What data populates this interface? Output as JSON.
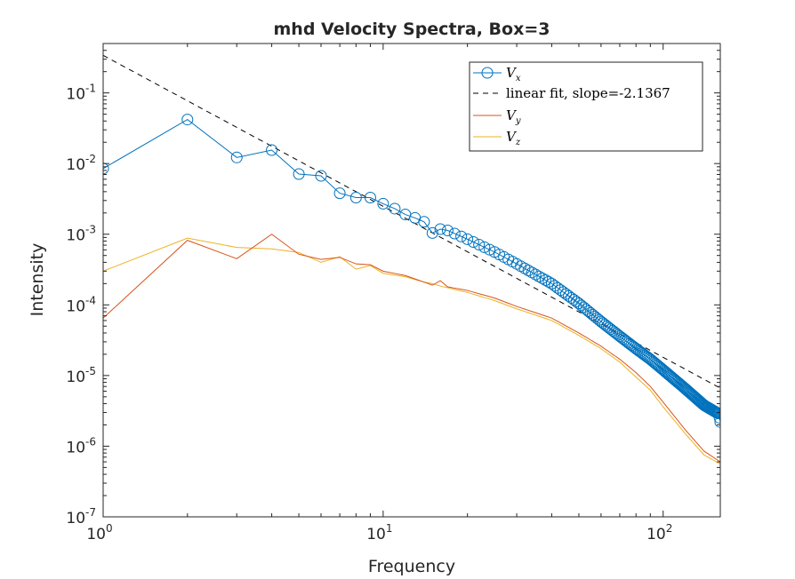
{
  "chart_data": {
    "type": "line",
    "title": "mhd Velocity Spectra, Box=3",
    "xlabel": "Frequency",
    "ylabel": "Intensity",
    "xscale": "log",
    "yscale": "log",
    "xlim": [
      1,
      160
    ],
    "ylim": [
      1e-07,
      0.5
    ],
    "grid": false,
    "legend_position": "top-right",
    "x_ticks": [
      {
        "base": "10",
        "exp": "0",
        "value": 1
      },
      {
        "base": "10",
        "exp": "1",
        "value": 10
      },
      {
        "base": "10",
        "exp": "2",
        "value": 100
      }
    ],
    "y_ticks": [
      {
        "base": "10",
        "exp": "-7",
        "value": 1e-07
      },
      {
        "base": "10",
        "exp": "-6",
        "value": 1e-06
      },
      {
        "base": "10",
        "exp": "-5",
        "value": 1e-05
      },
      {
        "base": "10",
        "exp": "-4",
        "value": 0.0001
      },
      {
        "base": "10",
        "exp": "-3",
        "value": 0.001
      },
      {
        "base": "10",
        "exp": "-2",
        "value": 0.01
      },
      {
        "base": "10",
        "exp": "-1",
        "value": 0.1
      }
    ],
    "series": [
      {
        "name": "V_x",
        "legend_main": "V",
        "legend_sub": "x",
        "color": "#0072BD",
        "marker": "circle",
        "anchors": [
          [
            1,
            0.0085
          ],
          [
            2,
            0.042
          ],
          [
            3,
            0.0122
          ],
          [
            4,
            0.0155
          ],
          [
            5,
            0.0071
          ],
          [
            6,
            0.0067
          ],
          [
            7,
            0.0038
          ],
          [
            8,
            0.0033
          ],
          [
            9,
            0.0033
          ],
          [
            10,
            0.0027
          ],
          [
            11,
            0.0023
          ],
          [
            12,
            0.0019
          ],
          [
            13,
            0.0017
          ],
          [
            14,
            0.0015
          ],
          [
            15,
            0.00104
          ],
          [
            16,
            0.00118
          ],
          [
            17,
            0.00113
          ],
          [
            20,
            0.00085
          ],
          [
            25,
            0.00056
          ],
          [
            30,
            0.00038
          ],
          [
            40,
            0.0002
          ],
          [
            50,
            0.000105
          ],
          [
            60,
            5.8e-05
          ],
          [
            70,
            3.6e-05
          ],
          [
            80,
            2.4e-05
          ],
          [
            90,
            1.7e-05
          ],
          [
            100,
            1.2e-05
          ],
          [
            120,
            6.5e-06
          ],
          [
            140,
            3.8e-06
          ],
          [
            155,
            3e-06
          ],
          [
            158,
            2.9e-06
          ],
          [
            160,
            2.2e-06
          ]
        ]
      },
      {
        "name": "linear fit, slope=-2.1367",
        "legend_label": "linear fit, slope=-2.1367",
        "color": "#000000",
        "dashed": true,
        "slope": -2.1367,
        "intercept_at_1": 0.34
      },
      {
        "name": "V_y",
        "legend_main": "V",
        "legend_sub": "y",
        "color": "#D95319",
        "anchors": [
          [
            1,
            6.5e-05
          ],
          [
            2,
            0.00082
          ],
          [
            3,
            0.00045
          ],
          [
            4,
            0.001
          ],
          [
            5,
            0.00052
          ],
          [
            6,
            0.00044
          ],
          [
            7,
            0.00047
          ],
          [
            8,
            0.00038
          ],
          [
            9,
            0.00037
          ],
          [
            10,
            0.0003
          ],
          [
            12,
            0.00026
          ],
          [
            14,
            0.00021
          ],
          [
            15,
            0.00019
          ],
          [
            16,
            0.00022
          ],
          [
            17,
            0.00018
          ],
          [
            20,
            0.00016
          ],
          [
            25,
            0.000125
          ],
          [
            30,
            9.5e-05
          ],
          [
            40,
            6.5e-05
          ],
          [
            50,
            4e-05
          ],
          [
            60,
            2.6e-05
          ],
          [
            70,
            1.7e-05
          ],
          [
            80,
            1.1e-05
          ],
          [
            90,
            7e-06
          ],
          [
            100,
            4.2e-06
          ],
          [
            120,
            1.7e-06
          ],
          [
            140,
            8.5e-07
          ],
          [
            160,
            6e-07
          ]
        ]
      },
      {
        "name": "V_z",
        "legend_main": "V",
        "legend_sub": "z",
        "color": "#EDB120",
        "anchors": [
          [
            1,
            0.0003
          ],
          [
            2,
            0.00088
          ],
          [
            3,
            0.00065
          ],
          [
            4,
            0.00062
          ],
          [
            5,
            0.00055
          ],
          [
            6,
            0.0004
          ],
          [
            7,
            0.00048
          ],
          [
            8,
            0.00032
          ],
          [
            9,
            0.00036
          ],
          [
            10,
            0.00028
          ],
          [
            12,
            0.00025
          ],
          [
            14,
            0.00021
          ],
          [
            15,
            0.0002
          ],
          [
            16,
            0.000185
          ],
          [
            20,
            0.00015
          ],
          [
            25,
            0.000115
          ],
          [
            30,
            8.8e-05
          ],
          [
            40,
            6e-05
          ],
          [
            50,
            3.7e-05
          ],
          [
            60,
            2.4e-05
          ],
          [
            70,
            1.55e-05
          ],
          [
            80,
            9.5e-06
          ],
          [
            90,
            6.2e-06
          ],
          [
            100,
            3.6e-06
          ],
          [
            120,
            1.5e-06
          ],
          [
            140,
            7.5e-07
          ],
          [
            160,
            5.6e-07
          ]
        ]
      }
    ]
  }
}
